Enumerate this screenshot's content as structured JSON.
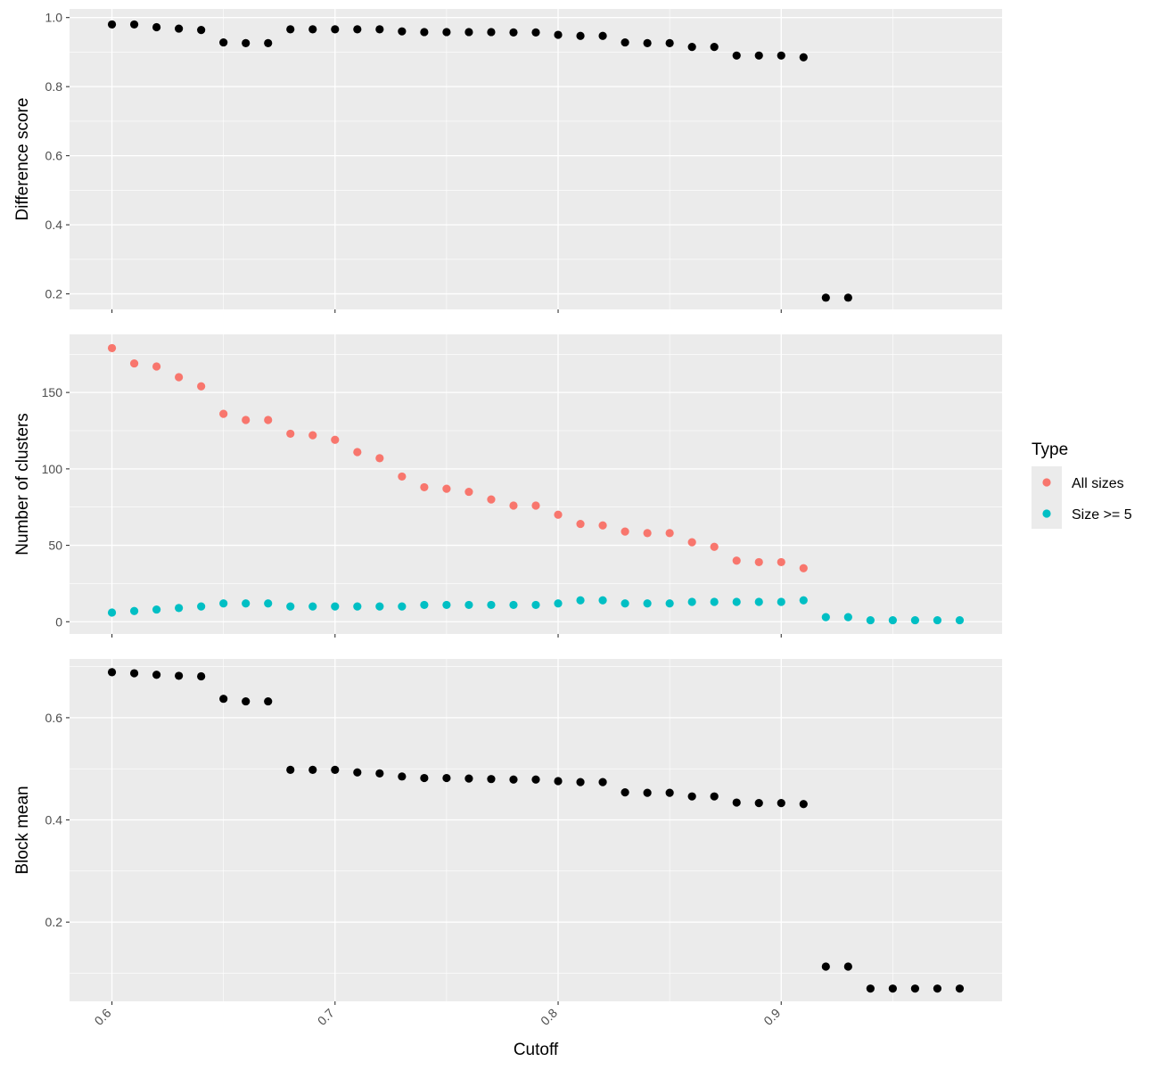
{
  "chart_data": {
    "type": "scatter",
    "xlabel": "Cutoff",
    "x_ticks": [
      "0.6",
      "0.7",
      "0.8",
      "0.9"
    ],
    "x_tick_values": [
      0.6,
      0.7,
      0.8,
      0.9
    ],
    "xlim": [
      0.581,
      0.999
    ],
    "grid": true,
    "legend": {
      "title": "Type",
      "position": "right",
      "entries": [
        {
          "label": "All sizes",
          "color": "#F8766D"
        },
        {
          "label": "Size >= 5",
          "color": "#00BFC4"
        }
      ]
    },
    "colors": {
      "panel_bg": "#EBEBEB",
      "grid": "#FFFFFF",
      "point_default": "#000000"
    },
    "panels": [
      {
        "ylabel": "Difference score",
        "ylim": [
          0.155,
          1.025
        ],
        "y_ticks": [
          "0.2",
          "0.4",
          "0.6",
          "0.8",
          "1.0"
        ],
        "y_tick_values": [
          0.2,
          0.4,
          0.6,
          0.8,
          1.0
        ],
        "series": [
          {
            "color": "#000000",
            "x": [
              0.6,
              0.61,
              0.62,
              0.63,
              0.64,
              0.65,
              0.66,
              0.67,
              0.68,
              0.69,
              0.7,
              0.71,
              0.72,
              0.73,
              0.74,
              0.75,
              0.76,
              0.77,
              0.78,
              0.79,
              0.8,
              0.81,
              0.82,
              0.83,
              0.84,
              0.85,
              0.86,
              0.87,
              0.88,
              0.89,
              0.9,
              0.91,
              0.92,
              0.93
            ],
            "y": [
              0.98,
              0.98,
              0.972,
              0.968,
              0.964,
              0.928,
              0.926,
              0.926,
              0.966,
              0.966,
              0.966,
              0.966,
              0.966,
              0.96,
              0.958,
              0.958,
              0.958,
              0.958,
              0.957,
              0.957,
              0.95,
              0.947,
              0.947,
              0.928,
              0.926,
              0.926,
              0.915,
              0.915,
              0.89,
              0.89,
              0.89,
              0.885,
              0.189,
              0.189
            ]
          }
        ]
      },
      {
        "ylabel": "Number of clusters",
        "ylim": [
          -8,
          188
        ],
        "y_ticks": [
          "0",
          "50",
          "100",
          "150"
        ],
        "y_tick_values": [
          0,
          50,
          100,
          150
        ],
        "series": [
          {
            "name": "All sizes",
            "color": "#F8766D",
            "x": [
              0.6,
              0.61,
              0.62,
              0.63,
              0.64,
              0.65,
              0.66,
              0.67,
              0.68,
              0.69,
              0.7,
              0.71,
              0.72,
              0.73,
              0.74,
              0.75,
              0.76,
              0.77,
              0.78,
              0.79,
              0.8,
              0.81,
              0.82,
              0.83,
              0.84,
              0.85,
              0.86,
              0.87,
              0.88,
              0.89,
              0.9,
              0.91
            ],
            "y": [
              179,
              169,
              167,
              160,
              154,
              136,
              132,
              132,
              123,
              122,
              119,
              111,
              107,
              95,
              88,
              87,
              85,
              80,
              76,
              76,
              70,
              64,
              63,
              59,
              58,
              58,
              52,
              49,
              40,
              39,
              39,
              35
            ]
          },
          {
            "name": "Size >= 5",
            "color": "#00BFC4",
            "x": [
              0.6,
              0.61,
              0.62,
              0.63,
              0.64,
              0.65,
              0.66,
              0.67,
              0.68,
              0.69,
              0.7,
              0.71,
              0.72,
              0.73,
              0.74,
              0.75,
              0.76,
              0.77,
              0.78,
              0.79,
              0.8,
              0.81,
              0.82,
              0.83,
              0.84,
              0.85,
              0.86,
              0.87,
              0.88,
              0.89,
              0.9,
              0.91,
              0.92,
              0.93,
              0.94,
              0.95,
              0.96,
              0.97,
              0.98
            ],
            "y": [
              6,
              7,
              8,
              9,
              10,
              12,
              12,
              12,
              10,
              10,
              10,
              10,
              10,
              10,
              11,
              11,
              11,
              11,
              11,
              11,
              12,
              14,
              14,
              12,
              12,
              12,
              13,
              13,
              13,
              13,
              13,
              14,
              3,
              3,
              1,
              1,
              1,
              1,
              1
            ]
          }
        ]
      },
      {
        "ylabel": "Block mean",
        "ylim": [
          0.045,
          0.715
        ],
        "y_ticks": [
          "0.2",
          "0.4",
          "0.6"
        ],
        "y_tick_values": [
          0.2,
          0.4,
          0.6
        ],
        "series": [
          {
            "color": "#000000",
            "x": [
              0.6,
              0.61,
              0.62,
              0.63,
              0.64,
              0.65,
              0.66,
              0.67,
              0.68,
              0.69,
              0.7,
              0.71,
              0.72,
              0.73,
              0.74,
              0.75,
              0.76,
              0.77,
              0.78,
              0.79,
              0.8,
              0.81,
              0.82,
              0.83,
              0.84,
              0.85,
              0.86,
              0.87,
              0.88,
              0.89,
              0.9,
              0.91,
              0.92,
              0.93,
              0.94,
              0.95,
              0.96,
              0.97,
              0.98
            ],
            "y": [
              0.689,
              0.687,
              0.684,
              0.682,
              0.681,
              0.637,
              0.632,
              0.632,
              0.498,
              0.498,
              0.498,
              0.493,
              0.491,
              0.485,
              0.482,
              0.482,
              0.481,
              0.48,
              0.479,
              0.479,
              0.476,
              0.474,
              0.474,
              0.454,
              0.453,
              0.453,
              0.446,
              0.446,
              0.434,
              0.433,
              0.433,
              0.431,
              0.113,
              0.113,
              0.07,
              0.07,
              0.07,
              0.07,
              0.07
            ]
          }
        ]
      }
    ]
  }
}
